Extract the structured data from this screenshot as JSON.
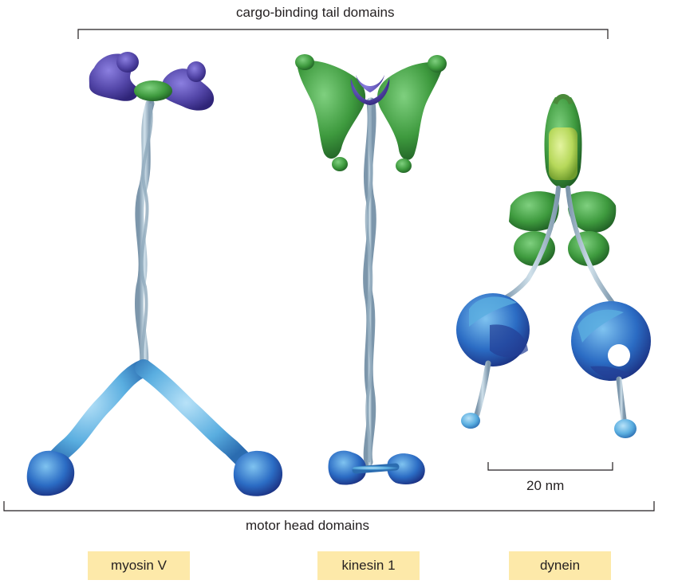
{
  "labels": {
    "top_bracket": "cargo-binding tail domains",
    "bottom_bracket": "motor head domains",
    "scale_bar": "20 nm"
  },
  "motors": [
    {
      "name": "myosin V"
    },
    {
      "name": "kinesin 1"
    },
    {
      "name": "dynein"
    }
  ],
  "colors": {
    "label_box": "#fde9a9",
    "coiled_coil": "#a9c3d3",
    "purple_domain": "#5346a8",
    "green_domain": "#3e9a3e",
    "light_green": "#b6d85a",
    "blue_head": "#2b6cc4",
    "light_blue": "#5aaee0",
    "dark_blue": "#233f96"
  }
}
